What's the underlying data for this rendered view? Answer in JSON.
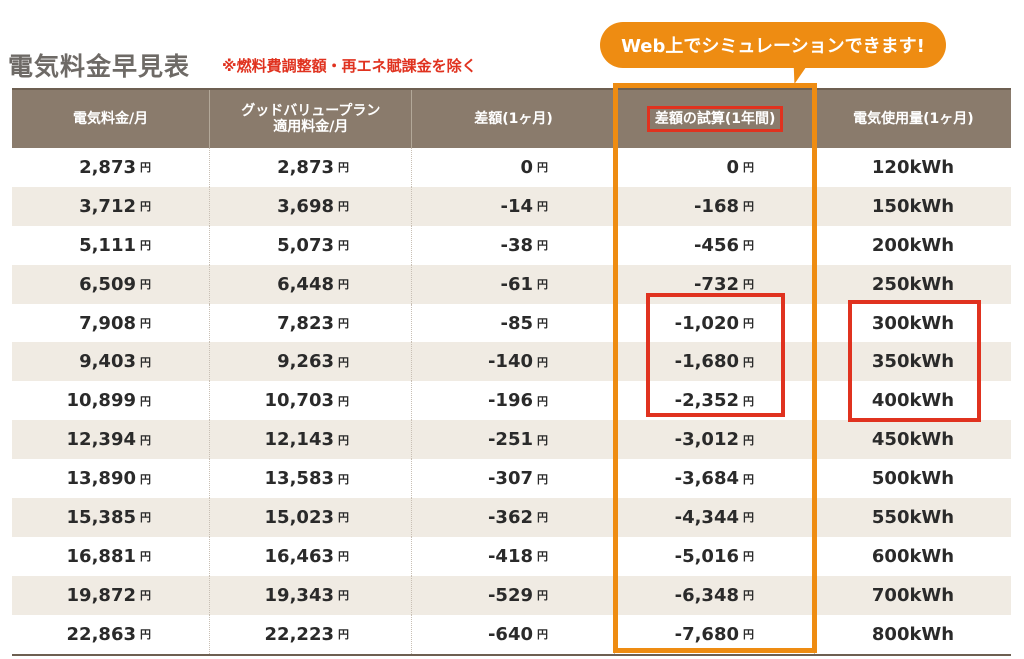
{
  "title": "電気料金早見表",
  "note": "※燃料費調整額・再エネ賦課金を除く",
  "bubble": "Web上でシミュレーションできます!",
  "yen": "円",
  "headers": {
    "h1": "電気料金/月",
    "h2a": "グッドバリュープラン",
    "h2b": "適用料金/月",
    "h3": "差額(1ヶ月)",
    "h4": "差額の試算(1年間)",
    "h5": "電気使用量(1ヶ月)"
  },
  "rows": [
    {
      "price": "2,873",
      "plan": "2,873",
      "diff": "0",
      "year": "0",
      "usage": "120kWh"
    },
    {
      "price": "3,712",
      "plan": "3,698",
      "diff": "-14",
      "year": "-168",
      "usage": "150kWh"
    },
    {
      "price": "5,111",
      "plan": "5,073",
      "diff": "-38",
      "year": "-456",
      "usage": "200kWh"
    },
    {
      "price": "6,509",
      "plan": "6,448",
      "diff": "-61",
      "year": "-732",
      "usage": "250kWh"
    },
    {
      "price": "7,908",
      "plan": "7,823",
      "diff": "-85",
      "year": "-1,020",
      "usage": "300kWh"
    },
    {
      "price": "9,403",
      "plan": "9,263",
      "diff": "-140",
      "year": "-1,680",
      "usage": "350kWh"
    },
    {
      "price": "10,899",
      "plan": "10,703",
      "diff": "-196",
      "year": "-2,352",
      "usage": "400kWh"
    },
    {
      "price": "12,394",
      "plan": "12,143",
      "diff": "-251",
      "year": "-3,012",
      "usage": "450kWh"
    },
    {
      "price": "13,890",
      "plan": "13,583",
      "diff": "-307",
      "year": "-3,684",
      "usage": "500kWh"
    },
    {
      "price": "15,385",
      "plan": "15,023",
      "diff": "-362",
      "year": "-4,344",
      "usage": "550kWh"
    },
    {
      "price": "16,881",
      "plan": "16,463",
      "diff": "-418",
      "year": "-5,016",
      "usage": "600kWh"
    },
    {
      "price": "19,872",
      "plan": "19,343",
      "diff": "-529",
      "year": "-6,348",
      "usage": "700kWh"
    },
    {
      "price": "22,863",
      "plan": "22,223",
      "diff": "-640",
      "year": "-7,680",
      "usage": "800kWh"
    }
  ],
  "colors": {
    "header_bg": "#8a7b6c",
    "accent_orange": "#ee8c12",
    "accent_red": "#e0321f",
    "stripe": "#f0ebe3"
  }
}
